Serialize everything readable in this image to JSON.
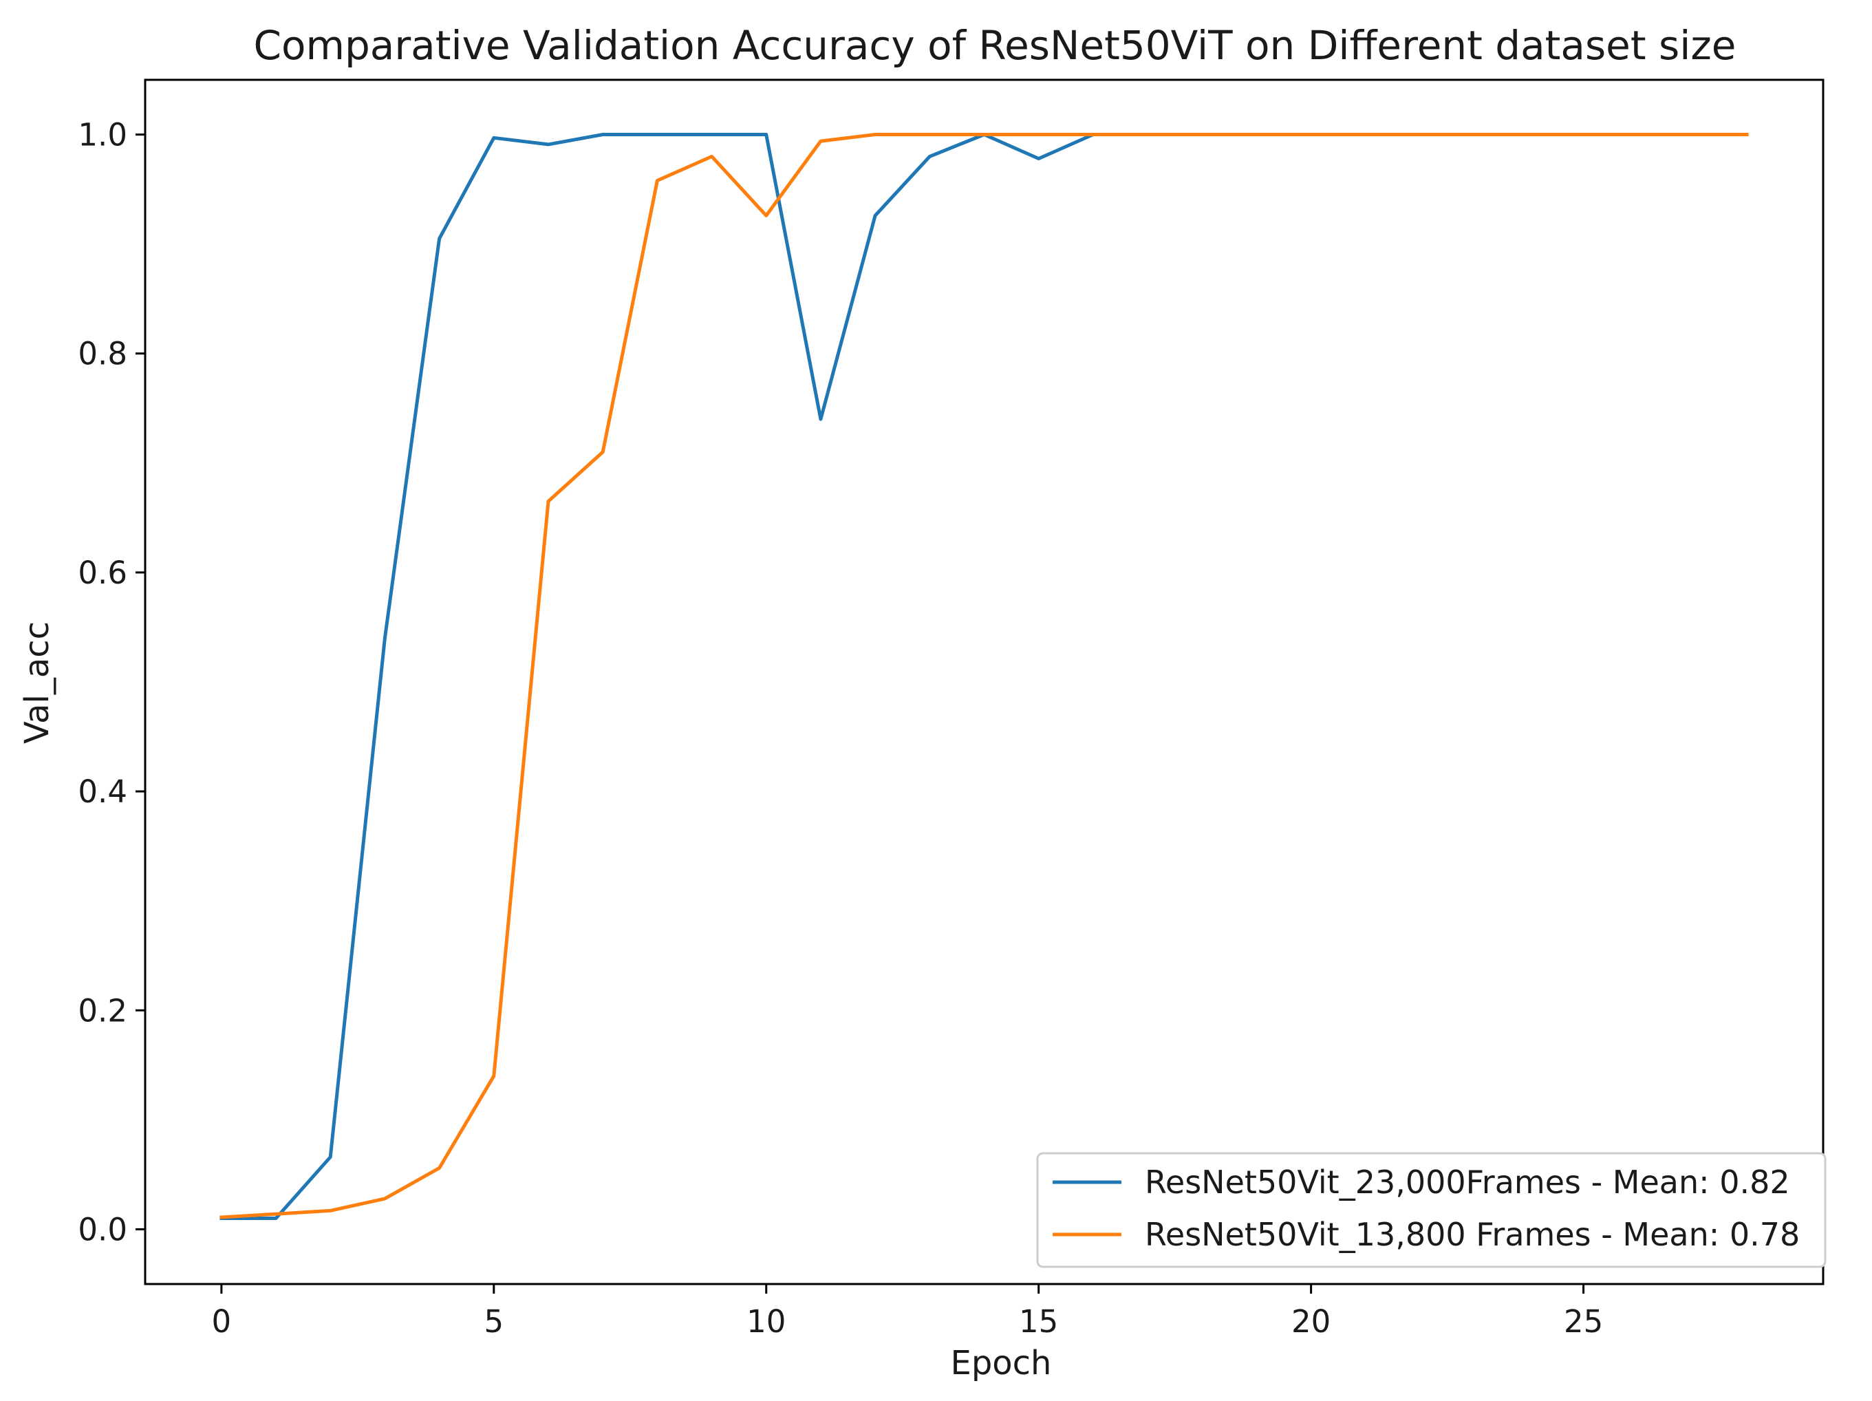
{
  "chart_data": {
    "type": "line",
    "title": "Comparative Validation Accuracy of ResNet50ViT on Different dataset size",
    "xlabel": "Epoch",
    "ylabel": "Val_acc",
    "xlim": [
      -1.4,
      29.4
    ],
    "ylim": [
      -0.05,
      1.05
    ],
    "xticks": [
      0,
      5,
      10,
      15,
      20,
      25
    ],
    "yticks": [
      0.0,
      0.2,
      0.4,
      0.6,
      0.8,
      1.0
    ],
    "xtick_labels": [
      "0",
      "5",
      "10",
      "15",
      "20",
      "25"
    ],
    "ytick_labels": [
      "0.0",
      "0.2",
      "0.4",
      "0.6",
      "0.8",
      "1.0"
    ],
    "grid": false,
    "legend_position": "lower-right",
    "series": [
      {
        "name": "ResNet50Vit_23,000Frames - Mean: 0.82",
        "color": "#1f77b4",
        "x": [
          0,
          1,
          2,
          3,
          4,
          5,
          6,
          7,
          8,
          9,
          10,
          11,
          12,
          13,
          14,
          15,
          16,
          17,
          18,
          19,
          20
        ],
        "y": [
          0.01,
          0.01,
          0.066,
          0.54,
          0.905,
          0.997,
          0.991,
          1.0,
          1.0,
          1.0,
          1.0,
          0.74,
          0.926,
          0.98,
          1.0,
          0.978,
          1.0,
          1.0,
          1.0,
          1.0,
          1.0
        ]
      },
      {
        "name": "ResNet50Vit_13,800 Frames - Mean: 0.78",
        "color": "#ff7f0e",
        "x": [
          0,
          1,
          2,
          3,
          4,
          5,
          6,
          7,
          8,
          9,
          10,
          11,
          12,
          13,
          14,
          15,
          16,
          17,
          18,
          19,
          20,
          21,
          22,
          23,
          24,
          25,
          26,
          27,
          28
        ],
        "y": [
          0.011,
          0.014,
          0.017,
          0.028,
          0.056,
          0.14,
          0.665,
          0.71,
          0.958,
          0.98,
          0.926,
          0.994,
          1.0,
          1.0,
          1.0,
          1.0,
          1.0,
          1.0,
          1.0,
          1.0,
          1.0,
          1.0,
          1.0,
          1.0,
          1.0,
          1.0,
          1.0,
          1.0,
          1.0
        ]
      }
    ]
  }
}
